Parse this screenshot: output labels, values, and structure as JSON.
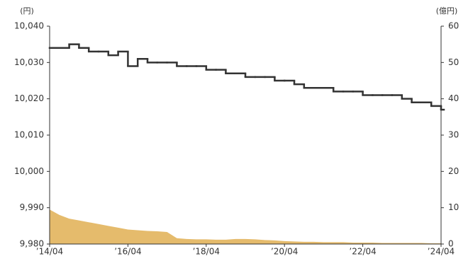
{
  "chart_data": {
    "type": "step-line-area",
    "y_unit": "(円)",
    "y2_unit": "(億円)",
    "x": [
      "2014-04",
      "2014-07",
      "2014-10",
      "2015-01",
      "2015-04",
      "2015-07",
      "2015-10",
      "2016-01",
      "2016-04",
      "2016-07",
      "2016-10",
      "2017-01",
      "2017-04",
      "2017-07",
      "2017-10",
      "2018-01",
      "2018-04",
      "2018-07",
      "2018-10",
      "2019-01",
      "2019-04",
      "2019-07",
      "2019-10",
      "2020-01",
      "2020-04",
      "2020-07",
      "2020-10",
      "2021-01",
      "2021-04",
      "2021-07",
      "2021-10",
      "2022-01",
      "2022-04",
      "2022-07",
      "2022-10",
      "2023-01",
      "2023-04",
      "2023-07",
      "2023-10",
      "2024-01",
      "2024-04"
    ],
    "xlim": [
      "2014-04",
      "2024-04"
    ],
    "xticks": [
      {
        "value": "2014-04",
        "label": "’14/04"
      },
      {
        "value": "2016-04",
        "label": "’16/04"
      },
      {
        "value": "2018-04",
        "label": "’18/04"
      },
      {
        "value": "2020-04",
        "label": "’20/04"
      },
      {
        "value": "2022-04",
        "label": "’22/04"
      },
      {
        "value": "2024-04",
        "label": "’24/04"
      }
    ],
    "ylim": [
      9980,
      10040
    ],
    "yticks": [
      {
        "value": 9980,
        "label": "9,980"
      },
      {
        "value": 9990,
        "label": "9,990"
      },
      {
        "value": 10000,
        "label": "10,000"
      },
      {
        "value": 10010,
        "label": "10,010"
      },
      {
        "value": 10020,
        "label": "10,020"
      },
      {
        "value": 10030,
        "label": "10,030"
      },
      {
        "value": 10040,
        "label": "10,040"
      }
    ],
    "y2lim": [
      0,
      60
    ],
    "y2ticks": [
      0,
      10,
      20,
      30,
      40,
      50,
      60
    ],
    "series": [
      {
        "kind": "step",
        "color": "#333333",
        "values": [
          10034,
          10034,
          10035,
          10034,
          10033,
          10033,
          10032,
          10033,
          10029,
          10031,
          10030,
          10030,
          10030,
          10029,
          10029,
          10029,
          10028,
          10028,
          10027,
          10027,
          10026,
          10026,
          10026,
          10025,
          10025,
          10024,
          10023,
          10023,
          10023,
          10022,
          10022,
          10022,
          10021,
          10021,
          10021,
          10021,
          10020,
          10019,
          10019,
          10018,
          10017
        ]
      },
      {
        "kind": "area",
        "axis": "y2",
        "color": "#e5bb6c",
        "values": [
          9.5,
          8,
          7,
          6.5,
          6,
          5.5,
          5,
          4.5,
          4,
          3.8,
          3.6,
          3.5,
          3.3,
          1.6,
          1.4,
          1.3,
          1.3,
          1.2,
          1.2,
          1.4,
          1.4,
          1.3,
          1.1,
          1.0,
          0.8,
          0.7,
          0.6,
          0.6,
          0.5,
          0.5,
          0.5,
          0.4,
          0.4,
          0.4,
          0.3,
          0.3,
          0.3,
          0.3,
          0.3,
          0.2,
          0.2
        ]
      }
    ]
  }
}
